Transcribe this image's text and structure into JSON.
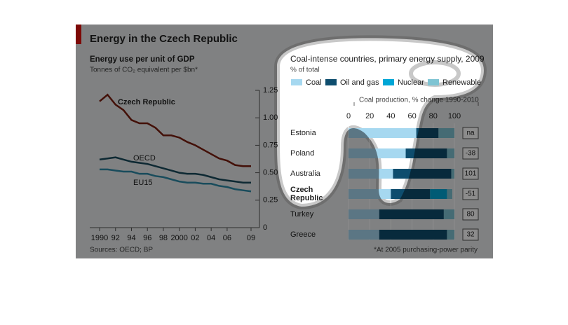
{
  "header": {
    "title": "Energy in the Czech Republic"
  },
  "footer": {
    "source": "Sources: OECD; BP",
    "note": "*At 2005 purchasing-power parity"
  },
  "chart_data": [
    {
      "type": "line",
      "title": "Energy use per unit of GDP",
      "subtitle": "Tonnes of CO₂ equivalent per $bn*",
      "x": [
        1990,
        1991,
        1992,
        1993,
        1994,
        1995,
        1996,
        1997,
        1998,
        1999,
        2000,
        2001,
        2002,
        2003,
        2004,
        2005,
        2006,
        2007,
        2008,
        2009
      ],
      "xlim": [
        1990,
        2009
      ],
      "xticks": [
        {
          "value": 1990,
          "label": "1990"
        },
        {
          "value": 1992,
          "label": "92"
        },
        {
          "value": 1994,
          "label": "94"
        },
        {
          "value": 1996,
          "label": "96"
        },
        {
          "value": 1998,
          "label": "98"
        },
        {
          "value": 2000,
          "label": "2000"
        },
        {
          "value": 2002,
          "label": "02"
        },
        {
          "value": 2004,
          "label": "04"
        },
        {
          "value": 2006,
          "label": "06"
        },
        {
          "value": 2009,
          "label": "09"
        }
      ],
      "ylim": [
        0,
        1.25
      ],
      "yticks": [
        0,
        0.25,
        {
          "value": 0.5,
          "label": "0.50"
        },
        0.75,
        {
          "value": 1,
          "label": "1.00"
        },
        1.25
      ],
      "series": [
        {
          "name": "Czech Republic",
          "color": "#7a1e0f",
          "values": [
            1.15,
            1.21,
            1.12,
            1.07,
            0.98,
            0.95,
            0.95,
            0.91,
            0.84,
            0.84,
            0.82,
            0.78,
            0.75,
            0.71,
            0.67,
            0.63,
            0.61,
            0.57,
            0.56,
            0.56
          ]
        },
        {
          "name": "OECD",
          "color": "#1a4b5e",
          "values": [
            0.62,
            0.63,
            0.64,
            0.62,
            0.6,
            0.59,
            0.58,
            0.56,
            0.54,
            0.52,
            0.5,
            0.49,
            0.49,
            0.48,
            0.46,
            0.44,
            0.43,
            0.42,
            0.41,
            0.41
          ]
        },
        {
          "name": "EU15",
          "color": "#2f8aa8",
          "values": [
            0.53,
            0.53,
            0.52,
            0.51,
            0.51,
            0.49,
            0.49,
            0.47,
            0.46,
            0.44,
            0.42,
            0.41,
            0.41,
            0.4,
            0.4,
            0.38,
            0.37,
            0.35,
            0.34,
            0.33
          ]
        }
      ]
    },
    {
      "type": "bar",
      "orientation": "horizontal",
      "stacked": true,
      "title": "Coal-intense countries, primary energy supply, 2009",
      "subtitle": "% of total",
      "categories": [
        "Estonia",
        "Poland",
        "Australia",
        "Czech Republic",
        "Turkey",
        "Greece"
      ],
      "xlim": [
        0,
        100
      ],
      "xticks": [
        0,
        20,
        40,
        60,
        80,
        100
      ],
      "series": [
        {
          "name": "Coal",
          "color": "#a6d8f0",
          "values": [
            64,
            54,
            42,
            40,
            29,
            29
          ]
        },
        {
          "name": "Oil and gas",
          "color": "#0e4d6e",
          "values": [
            21,
            39,
            55,
            37,
            61,
            64
          ]
        },
        {
          "name": "Nuclear",
          "color": "#00a6d6",
          "values": [
            0,
            0,
            0,
            16,
            0,
            0
          ]
        },
        {
          "name": "Renewable",
          "color": "#7fc4d3",
          "values": [
            15,
            7,
            3,
            5,
            10,
            7
          ]
        }
      ],
      "coal_production": {
        "title": "Coal production, % change 1990-2010",
        "values": [
          null,
          -38,
          101,
          -51,
          80,
          32
        ],
        "value_labels": [
          "na",
          "-38",
          "101",
          "-51",
          "80",
          "32"
        ]
      }
    }
  ]
}
